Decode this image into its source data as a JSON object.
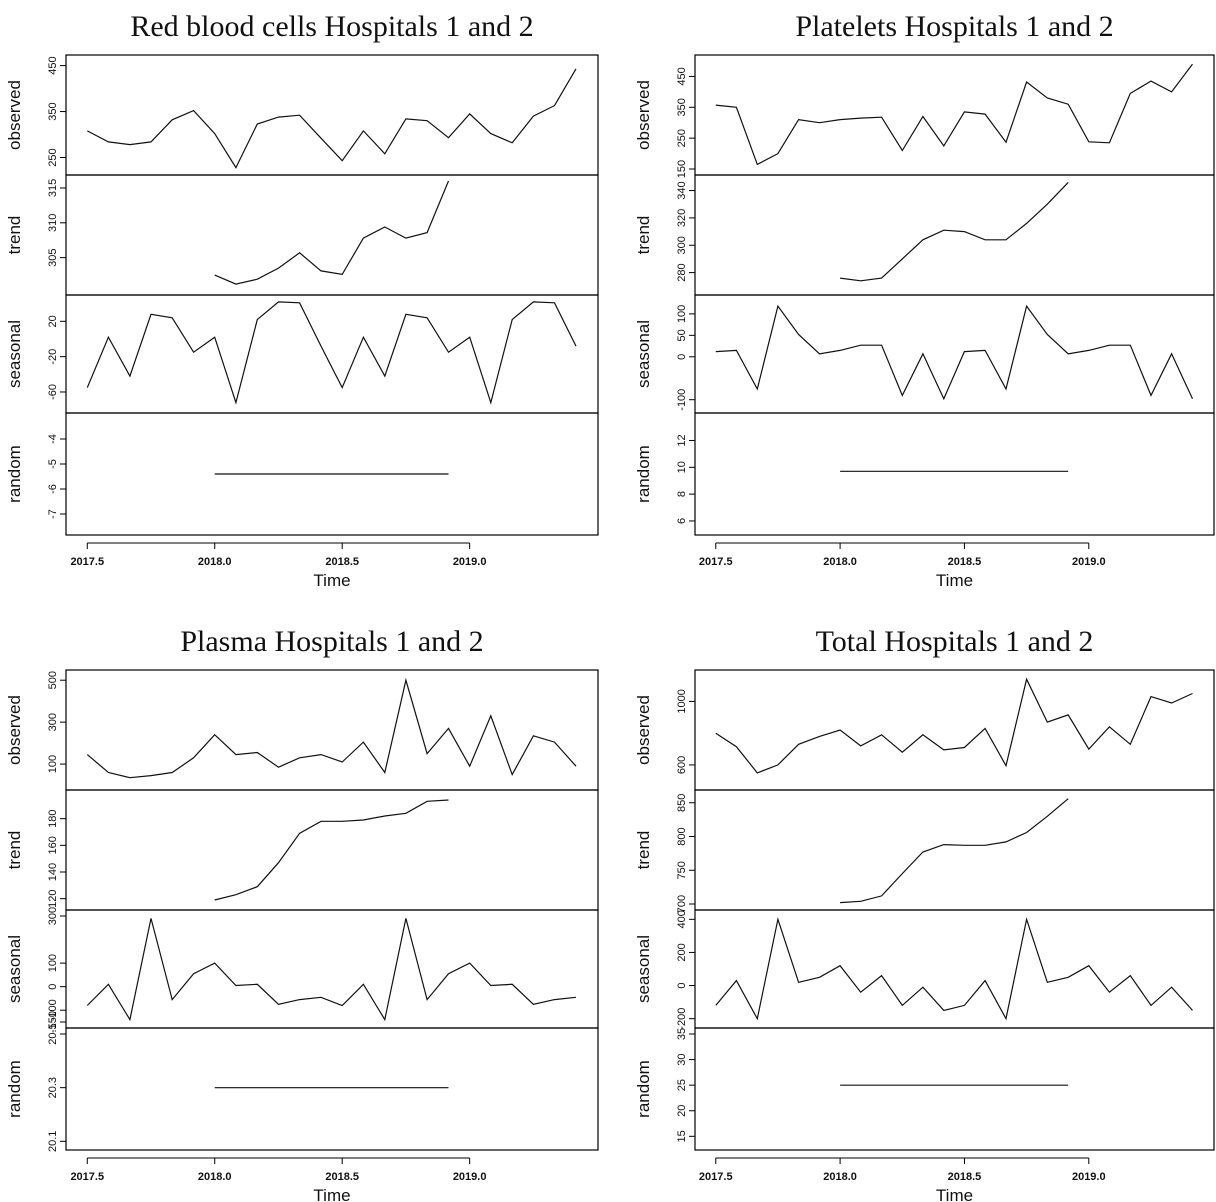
{
  "x_label": "Time",
  "chart_data": [
    {
      "type": "line",
      "title": "Red blood cells Hospitals 1 and 2",
      "xlabel": "Time",
      "x_ticks": [
        "2017.5",
        "2018.0",
        "2018.5",
        "2019.0"
      ],
      "xlim": [
        2017.5,
        2019.42
      ],
      "grid": false,
      "panels": [
        {
          "name": "observed",
          "ylim": [
            225,
            460
          ],
          "ticks": [
            250,
            350,
            450
          ],
          "x": [
            2017.5,
            2017.583,
            2017.667,
            2017.75,
            2017.833,
            2017.917,
            2018.0,
            2018.083,
            2018.167,
            2018.25,
            2018.333,
            2018.417,
            2018.5,
            2018.583,
            2018.667,
            2018.75,
            2018.833,
            2018.917,
            2019.0,
            2019.083,
            2019.167,
            2019.25,
            2019.333,
            2019.417
          ],
          "values": [
            308,
            284,
            278,
            284,
            332,
            352,
            302,
            228,
            323,
            338,
            342,
            292,
            243,
            308,
            258,
            334,
            330,
            293,
            345,
            302,
            282,
            340,
            363,
            443
          ]
        },
        {
          "name": "trend",
          "ylim": [
            300.5,
            316
          ],
          "ticks": [
            305,
            310,
            315
          ],
          "x": [
            2018.0,
            2018.083,
            2018.167,
            2018.25,
            2018.333,
            2018.417,
            2018.5,
            2018.583,
            2018.667,
            2018.75,
            2018.833,
            2018.917
          ],
          "values": [
            302.5,
            301.2,
            301.9,
            303.5,
            305.7,
            303.1,
            302.6,
            307.8,
            309.4,
            307.8,
            308.6,
            316.0
          ]
        },
        {
          "name": "seasonal",
          "ylim": [
            -77,
            43
          ],
          "ticks": [
            -60,
            -20,
            20
          ],
          "x": [
            2017.5,
            2017.583,
            2017.667,
            2017.75,
            2017.833,
            2017.917,
            2018.0,
            2018.083,
            2018.167,
            2018.25,
            2018.333,
            2018.417,
            2018.5,
            2018.583,
            2018.667,
            2018.75,
            2018.833,
            2018.917,
            2019.0,
            2019.083,
            2019.167,
            2019.25,
            2019.333,
            2019.417
          ],
          "values": [
            -55,
            2,
            -42,
            28,
            24,
            -15,
            2,
            -72,
            22,
            42,
            41,
            -8,
            -55,
            2,
            -42,
            28,
            24,
            -15,
            2,
            -72,
            22,
            42,
            41,
            -8
          ]
        },
        {
          "name": "random",
          "ylim": [
            -7.6,
            -3.2
          ],
          "ticks": [
            -7,
            -6,
            -5,
            -4
          ],
          "x": [
            2018.0,
            2018.917
          ],
          "values": [
            -5.4,
            -5.4
          ]
        }
      ]
    },
    {
      "type": "line",
      "title": "Platelets Hospitals 1 and 2",
      "xlabel": "Time",
      "x_ticks": [
        "2017.5",
        "2018.0",
        "2018.5",
        "2019.0"
      ],
      "xlim": [
        2017.5,
        2019.42
      ],
      "grid": false,
      "panels": [
        {
          "name": "observed",
          "ylim": [
            150,
            500
          ],
          "ticks": [
            150,
            250,
            350,
            450
          ],
          "x": [
            2017.5,
            2017.583,
            2017.667,
            2017.75,
            2017.833,
            2017.917,
            2018.0,
            2018.083,
            2018.167,
            2018.25,
            2018.333,
            2018.417,
            2018.5,
            2018.583,
            2018.667,
            2018.75,
            2018.833,
            2018.917,
            2019.0,
            2019.083,
            2019.167,
            2019.25,
            2019.333,
            2019.417
          ],
          "values": [
            357,
            350,
            165,
            200,
            310,
            300,
            310,
            315,
            318,
            210,
            320,
            225,
            335,
            328,
            237,
            432,
            380,
            360,
            238,
            235,
            395,
            435,
            400,
            490
          ]
        },
        {
          "name": "trend",
          "ylim": [
            268,
            347
          ],
          "ticks": [
            280,
            300,
            320,
            340
          ],
          "x": [
            2018.0,
            2018.083,
            2018.167,
            2018.25,
            2018.333,
            2018.417,
            2018.5,
            2018.583,
            2018.667,
            2018.75,
            2018.833,
            2018.917
          ],
          "values": [
            276,
            274,
            276,
            290,
            304,
            311,
            310,
            304,
            304,
            316,
            330,
            346
          ]
        },
        {
          "name": "seasonal",
          "ylim": [
            -117,
            130
          ],
          "ticks": [
            -100,
            0,
            50,
            100
          ],
          "x": [
            2017.5,
            2017.583,
            2017.667,
            2017.75,
            2017.833,
            2017.917,
            2018.0,
            2018.083,
            2018.167,
            2018.25,
            2018.333,
            2018.417,
            2018.5,
            2018.583,
            2018.667,
            2018.75,
            2018.833,
            2018.917,
            2019.0,
            2019.083,
            2019.167,
            2019.25,
            2019.333,
            2019.417
          ],
          "values": [
            12,
            15,
            -75,
            118,
            52,
            7,
            15,
            27,
            27,
            -90,
            7,
            -98,
            12,
            15,
            -75,
            118,
            52,
            7,
            15,
            27,
            27,
            -90,
            7,
            -98
          ]
        },
        {
          "name": "random",
          "ylim": [
            5.4,
            13.6
          ],
          "ticks": [
            6,
            8,
            10,
            12
          ],
          "x": [
            2018.0,
            2018.917
          ],
          "values": [
            9.7,
            9.7
          ]
        }
      ]
    },
    {
      "type": "line",
      "title": "Plasma Hospitals 1 and 2",
      "xlabel": "Time",
      "x_ticks": [
        "2017.5",
        "2018.0",
        "2018.5",
        "2019.0"
      ],
      "xlim": [
        2017.5,
        2019.42
      ],
      "grid": false,
      "panels": [
        {
          "name": "observed",
          "ylim": [
            5,
            520
          ],
          "ticks": [
            100,
            300,
            500
          ],
          "x": [
            2017.5,
            2017.583,
            2017.667,
            2017.75,
            2017.833,
            2017.917,
            2018.0,
            2018.083,
            2018.167,
            2018.25,
            2018.333,
            2018.417,
            2018.5,
            2018.583,
            2018.667,
            2018.75,
            2018.833,
            2018.917,
            2019.0,
            2019.083,
            2019.167,
            2019.25,
            2019.333,
            2019.417
          ],
          "values": [
            145,
            60,
            35,
            45,
            60,
            130,
            240,
            145,
            155,
            85,
            130,
            145,
            110,
            205,
            60,
            500,
            150,
            270,
            90,
            330,
            50,
            235,
            205,
            90
          ]
        },
        {
          "name": "trend",
          "ylim": [
            116,
            197
          ],
          "ticks": [
            120,
            140,
            160,
            180
          ],
          "x": [
            2018.0,
            2018.083,
            2018.167,
            2018.25,
            2018.333,
            2018.417,
            2018.5,
            2018.583,
            2018.667,
            2018.75,
            2018.833,
            2018.917
          ],
          "values": [
            119,
            123,
            129,
            147,
            169,
            178,
            178,
            179,
            182,
            184,
            193,
            194
          ]
        },
        {
          "name": "seasonal",
          "ylim": [
            -150,
            300
          ],
          "ticks": [
            -150,
            -100,
            0,
            100,
            300
          ],
          "x": [
            2017.5,
            2017.583,
            2017.667,
            2017.75,
            2017.833,
            2017.917,
            2018.0,
            2018.083,
            2018.167,
            2018.25,
            2018.333,
            2018.417,
            2018.5,
            2018.583,
            2018.667,
            2018.75,
            2018.833,
            2018.917,
            2019.0,
            2019.083,
            2019.167,
            2019.25,
            2019.333,
            2019.417
          ],
          "values": [
            -80,
            10,
            -140,
            290,
            -55,
            55,
            100,
            5,
            10,
            -75,
            -55,
            -45,
            -80,
            10,
            -140,
            290,
            -55,
            55,
            100,
            5,
            10,
            -75,
            -55,
            -45
          ]
        },
        {
          "name": "random",
          "ylim": [
            20.09,
            20.5
          ],
          "ticks": [
            20.1,
            20.3,
            20.5
          ],
          "x": [
            2018.0,
            2018.917
          ],
          "values": [
            20.3,
            20.3
          ]
        }
      ]
    },
    {
      "type": "line",
      "title": "Total Hospitals 1 and 2",
      "xlabel": "Time",
      "x_ticks": [
        "2017.5",
        "2018.0",
        "2018.5",
        "2019.0"
      ],
      "xlim": [
        2017.5,
        2019.42
      ],
      "grid": false,
      "panels": [
        {
          "name": "observed",
          "ylim": [
            480,
            1160
          ],
          "ticks": [
            600,
            1000
          ],
          "x": [
            2017.5,
            2017.583,
            2017.667,
            2017.75,
            2017.833,
            2017.917,
            2018.0,
            2018.083,
            2018.167,
            2018.25,
            2018.333,
            2018.417,
            2018.5,
            2018.583,
            2018.667,
            2018.75,
            2018.833,
            2018.917,
            2019.0,
            2019.083,
            2019.167,
            2019.25,
            2019.333,
            2019.417
          ],
          "values": [
            800,
            715,
            550,
            600,
            730,
            780,
            820,
            720,
            790,
            680,
            790,
            695,
            710,
            830,
            595,
            1140,
            870,
            915,
            700,
            840,
            730,
            1030,
            990,
            1050
          ]
        },
        {
          "name": "trend",
          "ylim": [
            700,
            860
          ],
          "ticks": [
            700,
            750,
            800,
            850
          ],
          "x": [
            2018.0,
            2018.083,
            2018.167,
            2018.25,
            2018.333,
            2018.417,
            2018.5,
            2018.583,
            2018.667,
            2018.75,
            2018.833,
            2018.917
          ],
          "values": [
            702,
            704,
            712,
            745,
            777,
            788,
            787,
            787,
            792,
            806,
            830,
            856
          ]
        },
        {
          "name": "seasonal",
          "ylim": [
            -220,
            420
          ],
          "ticks": [
            -200,
            0,
            200,
            400
          ],
          "x": [
            2017.5,
            2017.583,
            2017.667,
            2017.75,
            2017.833,
            2017.917,
            2018.0,
            2018.083,
            2018.167,
            2018.25,
            2018.333,
            2018.417,
            2018.5,
            2018.583,
            2018.667,
            2018.75,
            2018.833,
            2018.917,
            2019.0,
            2019.083,
            2019.167,
            2019.25,
            2019.333,
            2019.417
          ],
          "values": [
            -120,
            30,
            -200,
            400,
            20,
            50,
            120,
            -40,
            60,
            -120,
            -10,
            -150,
            -120,
            30,
            -200,
            400,
            20,
            50,
            120,
            -40,
            60,
            -120,
            -10,
            -150
          ]
        },
        {
          "name": "random",
          "ylim": [
            13.5,
            35
          ],
          "ticks": [
            15,
            20,
            25,
            30,
            35
          ],
          "x": [
            2018.0,
            2018.917
          ],
          "values": [
            25,
            25
          ]
        }
      ]
    }
  ]
}
